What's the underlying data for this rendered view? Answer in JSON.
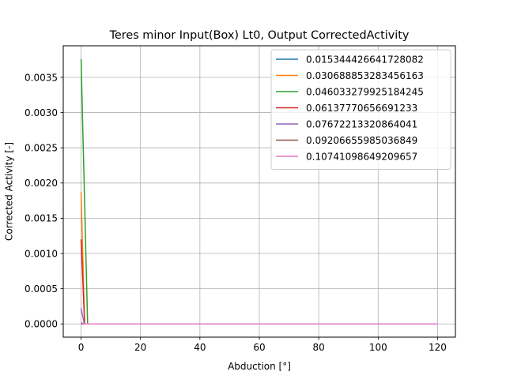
{
  "chart_data": {
    "type": "line",
    "title": "Teres minor Input(Box) Lt0, Output CorrectedActivity",
    "xlabel": "Abduction [°]",
    "ylabel": "Corrected Activity [-]",
    "xlim": [
      -6,
      126
    ],
    "ylim": [
      -0.000188,
      0.003948
    ],
    "xticks": [
      0,
      20,
      40,
      60,
      80,
      100,
      120
    ],
    "yticks": [
      0.0,
      0.0005,
      0.001,
      0.0015,
      0.002,
      0.0025,
      0.003,
      0.0035
    ],
    "xtick_labels": [
      "0",
      "20",
      "40",
      "60",
      "80",
      "100",
      "120"
    ],
    "ytick_labels": [
      "0.0000",
      "0.0005",
      "0.0010",
      "0.0015",
      "0.0020",
      "0.0025",
      "0.0030",
      "0.0035"
    ],
    "grid": true,
    "legend_position": "top-right",
    "series": [
      {
        "name": "0.015344426641728082",
        "color": "#1f77b4",
        "x": [
          0,
          1,
          2,
          120
        ],
        "y": [
          0.0,
          0.0,
          0.0,
          0.0
        ]
      },
      {
        "name": "0.030688853283456163",
        "color": "#ff7f0e",
        "x": [
          0,
          1.2,
          2,
          120
        ],
        "y": [
          0.00187,
          0.0,
          0.0,
          0.0
        ]
      },
      {
        "name": "0.046033279925184245",
        "color": "#2ca02c",
        "x": [
          0,
          2.2,
          3,
          120
        ],
        "y": [
          0.00376,
          0.0,
          0.0,
          0.0
        ]
      },
      {
        "name": "0.06137770656691233",
        "color": "#d62728",
        "x": [
          0,
          1.2,
          2,
          120
        ],
        "y": [
          0.0012,
          0.0,
          0.0,
          0.0
        ]
      },
      {
        "name": "0.07672213320864041",
        "color": "#9467bd",
        "x": [
          0,
          1.1,
          2,
          120
        ],
        "y": [
          0.00022,
          0.0,
          0.0,
          0.0
        ]
      },
      {
        "name": "0.09206655985036849",
        "color": "#8c564b",
        "x": [
          0,
          1,
          2,
          120
        ],
        "y": [
          1e-05,
          0.0,
          0.0,
          0.0
        ]
      },
      {
        "name": "0.10741098649209657",
        "color": "#e377c2",
        "x": [
          0,
          1,
          2,
          120
        ],
        "y": [
          2e-05,
          0.0,
          0.0,
          0.0
        ]
      }
    ]
  }
}
